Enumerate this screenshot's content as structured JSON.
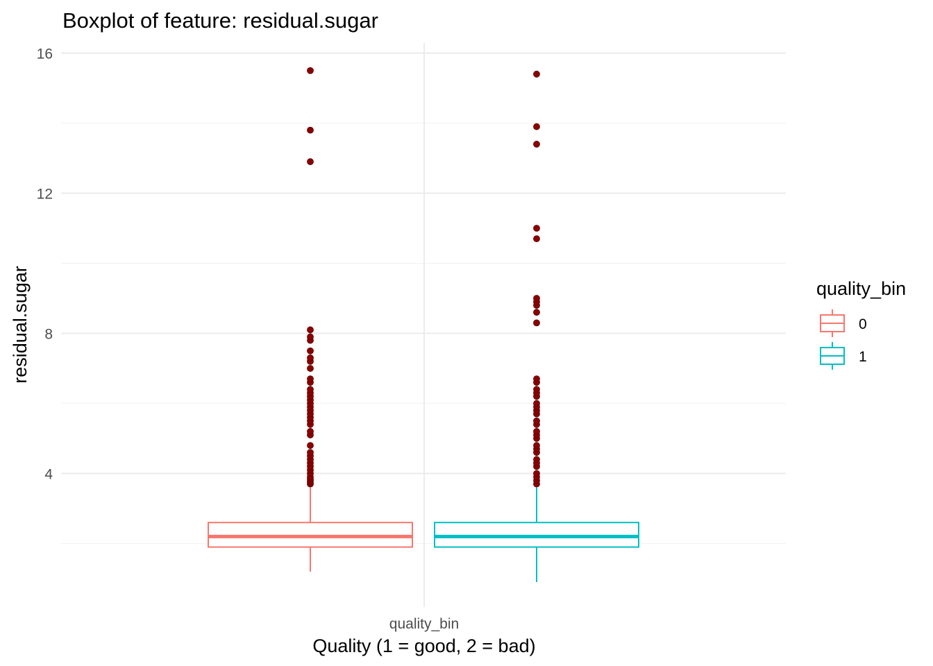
{
  "chart_data": {
    "type": "boxplot",
    "title": "Boxplot of feature: residual.sugar",
    "xlabel": "Quality (1 = good, 2 = bad)",
    "ylabel": "residual.sugar",
    "x_tick_label": "quality_bin",
    "ylim": [
      0.5,
      16.2
    ],
    "y_ticks": [
      4,
      8,
      12,
      16
    ],
    "grid": true,
    "legend": {
      "title": "quality_bin",
      "placement": "right",
      "entries": [
        "0",
        "1"
      ]
    },
    "outlier_color": "#8b0000",
    "series": [
      {
        "name": "0",
        "color": "#f8766d",
        "whisker_low": 1.2,
        "q1": 1.9,
        "median": 2.2,
        "q3": 2.6,
        "whisker_high": 3.6,
        "outliers": [
          3.7,
          3.75,
          3.8,
          3.85,
          3.9,
          4.0,
          4.1,
          4.2,
          4.3,
          4.4,
          4.5,
          4.6,
          4.8,
          5.1,
          5.2,
          5.4,
          5.5,
          5.6,
          5.7,
          5.8,
          5.9,
          6.0,
          6.1,
          6.2,
          6.3,
          6.4,
          6.6,
          6.7,
          7.0,
          7.2,
          7.3,
          7.5,
          7.8,
          7.9,
          8.1,
          12.9,
          13.8,
          15.5
        ]
      },
      {
        "name": "1",
        "color": "#00bfc4",
        "whisker_low": 0.9,
        "q1": 1.9,
        "median": 2.2,
        "q3": 2.6,
        "whisker_high": 3.6,
        "outliers": [
          3.7,
          3.8,
          3.9,
          4.0,
          4.2,
          4.3,
          4.4,
          4.6,
          4.7,
          4.8,
          5.0,
          5.1,
          5.2,
          5.4,
          5.5,
          5.7,
          5.8,
          5.9,
          6.0,
          6.2,
          6.3,
          6.4,
          6.6,
          6.7,
          8.3,
          8.6,
          8.8,
          8.9,
          9.0,
          10.7,
          11.0,
          13.4,
          13.9,
          15.4
        ]
      }
    ]
  }
}
